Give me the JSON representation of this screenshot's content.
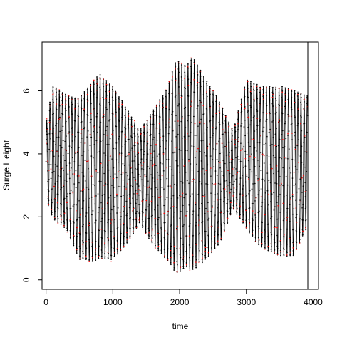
{
  "chart_data": {
    "type": "line",
    "title": "",
    "xlabel": "time",
    "ylabel": "Surge Height",
    "xlim": [
      -60,
      4080
    ],
    "ylim": [
      -0.3,
      7.55
    ],
    "x_ticks": [
      0,
      1000,
      2000,
      3000,
      4000
    ],
    "y_ticks": [
      0,
      2,
      4,
      6
    ],
    "grid": false,
    "legend": "none",
    "n_points": 3920,
    "oscillation_period": 47,
    "vertical_marker_x": 3920,
    "envelope": {
      "x": [
        0,
        100,
        300,
        500,
        700,
        800,
        1000,
        1200,
        1400,
        1600,
        1800,
        1950,
        2100,
        2200,
        2400,
        2600,
        2800,
        3000,
        3200,
        3500,
        3700,
        3900
      ],
      "upper": [
        5.0,
        6.3,
        6.0,
        5.9,
        6.5,
        6.7,
        6.3,
        5.6,
        4.8,
        5.5,
        6.2,
        7.2,
        7.0,
        7.3,
        6.5,
        5.8,
        4.8,
        6.5,
        6.3,
        6.3,
        6.2,
        6.0
      ],
      "lower": [
        2.5,
        1.8,
        1.5,
        0.5,
        0.4,
        0.5,
        0.5,
        1.0,
        1.7,
        1.0,
        0.5,
        0.0,
        0.2,
        0.1,
        0.5,
        1.0,
        2.2,
        1.5,
        0.9,
        0.6,
        0.6,
        1.5
      ]
    },
    "series": [
      {
        "color": "#000000",
        "marker": "point"
      },
      {
        "color": "#ff0000",
        "marker": "point"
      }
    ]
  }
}
